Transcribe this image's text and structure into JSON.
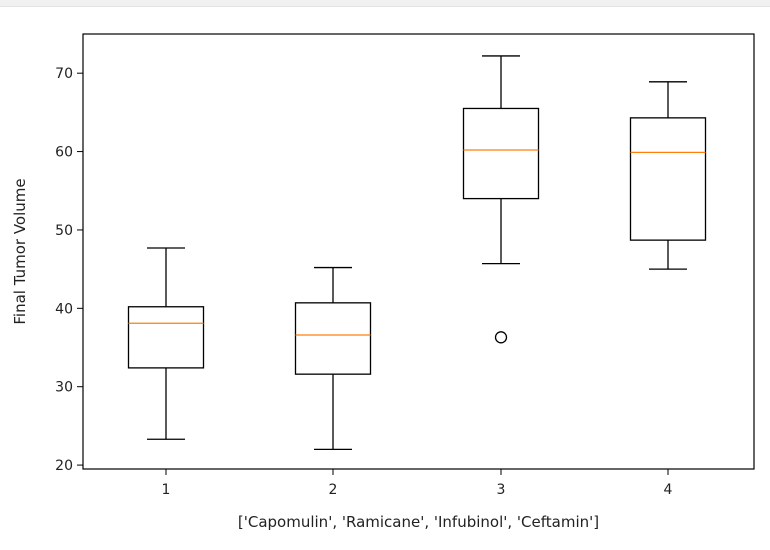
{
  "chart_data": {
    "type": "box",
    "title": "",
    "xlabel": "['Capomulin', 'Ramicane', 'Infubinol', 'Ceftamin']",
    "ylabel": "Final Tumor Volume",
    "ylim": [
      19.5,
      75
    ],
    "yticks": [
      20,
      30,
      40,
      50,
      60,
      70
    ],
    "categories": [
      "1",
      "2",
      "3",
      "4"
    ],
    "boxes": [
      {
        "name": "Capomulin",
        "whisker_low": 23.3,
        "q1": 32.4,
        "median": 38.1,
        "q3": 40.2,
        "whisker_high": 47.7,
        "outliers": []
      },
      {
        "name": "Ramicane",
        "whisker_low": 22.0,
        "q1": 31.6,
        "median": 36.6,
        "q3": 40.7,
        "whisker_high": 45.2,
        "outliers": []
      },
      {
        "name": "Infubinol",
        "whisker_low": 45.7,
        "q1": 54.0,
        "median": 60.2,
        "q3": 65.5,
        "whisker_high": 72.2,
        "outliers": [
          36.3
        ]
      },
      {
        "name": "Ceftamin",
        "whisker_low": 45.0,
        "q1": 48.7,
        "median": 59.9,
        "q3": 64.3,
        "whisker_high": 68.9,
        "outliers": []
      }
    ],
    "colors": {
      "box": "#000000",
      "median": "#ff7f0e",
      "axis": "#000000"
    },
    "grid": false
  }
}
